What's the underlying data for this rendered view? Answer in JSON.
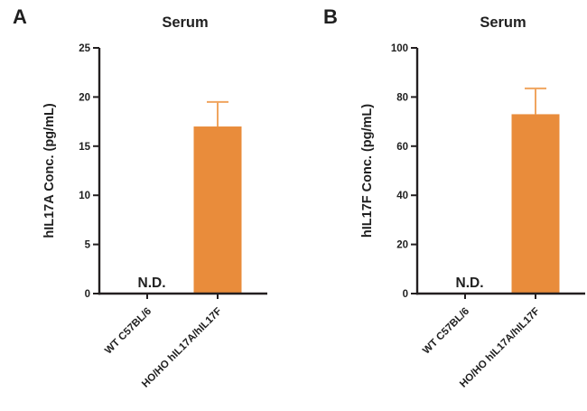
{
  "figure": {
    "background": "#ffffff",
    "text_color": "#1f1f1f",
    "axis_color": "#231f20"
  },
  "chart_data": [
    {
      "type": "bar",
      "panel_letter": "A",
      "title": "Serum",
      "xlabel": "",
      "ylabel": "hIL17A Conc. (pg/mL)",
      "ylim": [
        0,
        25
      ],
      "yticks": [
        0,
        5,
        10,
        15,
        20,
        25
      ],
      "categories": [
        "WT C57BL/6",
        "HO/HO hIL17A/hIL17F"
      ],
      "values": [
        null,
        17
      ],
      "errors": [
        null,
        2.5
      ],
      "nd_label": "N.D.",
      "bar_color": "#E98C3B",
      "error_color": "#F0A55F",
      "legend": "none",
      "grid": "off"
    },
    {
      "type": "bar",
      "panel_letter": "B",
      "title": "Serum",
      "xlabel": "",
      "ylabel": "hIL17F Conc. (pg/mL)",
      "ylim": [
        0,
        100
      ],
      "yticks": [
        0,
        20,
        40,
        60,
        80,
        100
      ],
      "categories": [
        "WT C57BL/6",
        "HO/HO hIL17A/hIL17F"
      ],
      "values": [
        null,
        73
      ],
      "errors": [
        null,
        10.5
      ],
      "nd_label": "N.D.",
      "bar_color": "#E98C3B",
      "error_color": "#F0A55F",
      "legend": "none",
      "grid": "off"
    }
  ]
}
